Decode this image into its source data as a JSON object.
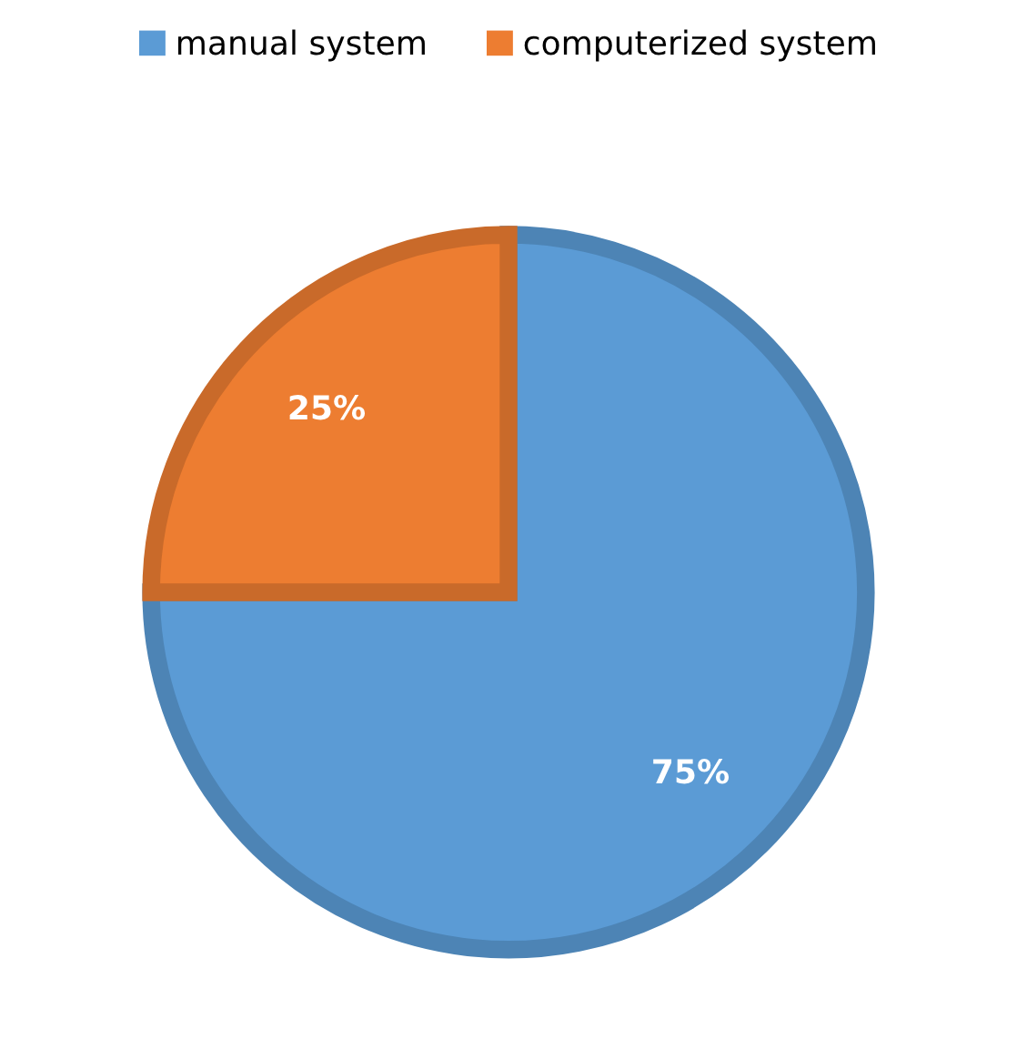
{
  "chart_data": {
    "type": "pie",
    "categories": [
      "manual system",
      "computerized system"
    ],
    "values": [
      75,
      25
    ],
    "colors": [
      "#5b9bd5",
      "#ed7d31"
    ],
    "value_labels": [
      "75%",
      "25%"
    ],
    "legend": "top"
  }
}
